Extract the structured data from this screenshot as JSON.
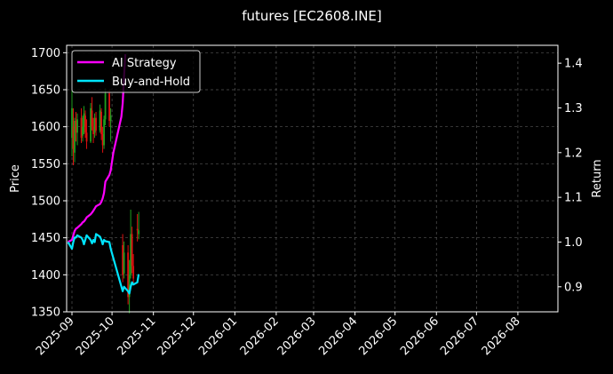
{
  "chart_data": {
    "type": "line",
    "title": "futures [EC2608.INE]",
    "ylabel_left": "Price",
    "ylabel_right": "Return",
    "ylim_left": [
      1350,
      1710
    ],
    "ylim_right": [
      0.844,
      1.44
    ],
    "yticks_left": [
      1350,
      1400,
      1450,
      1500,
      1550,
      1600,
      1650,
      1700
    ],
    "yticks_right": [
      0.9,
      1.0,
      1.1,
      1.2,
      1.3,
      1.4
    ],
    "xlim": [
      "2025-08-28",
      "2026-08-31"
    ],
    "xticks": [
      "2025-09",
      "2025-10",
      "2025-11",
      "2025-12",
      "2026-01",
      "2026-02",
      "2026-03",
      "2026-04",
      "2026-05",
      "2026-06",
      "2026-07",
      "2026-08"
    ],
    "grid": true,
    "legend": {
      "position": "top-left",
      "entries": [
        {
          "label": "AI Strategy",
          "color": "#ff00ff"
        },
        {
          "label": "Buy-and-Hold",
          "color": "#00e5ff"
        }
      ]
    },
    "colors": {
      "up": "#1fa01f",
      "down": "#e01010",
      "grid": "#555555",
      "axis": "#ffffff"
    },
    "candles": [
      {
        "date": "2025-09-01",
        "open": 1585,
        "high": 1655,
        "low": 1560,
        "close": 1625
      },
      {
        "date": "2025-09-02",
        "open": 1600,
        "high": 1625,
        "low": 1548,
        "close": 1570
      },
      {
        "date": "2025-09-03",
        "open": 1565,
        "high": 1612,
        "low": 1552,
        "close": 1608
      },
      {
        "date": "2025-09-04",
        "open": 1608,
        "high": 1620,
        "low": 1580,
        "close": 1592
      },
      {
        "date": "2025-09-05",
        "open": 1592,
        "high": 1618,
        "low": 1575,
        "close": 1610
      },
      {
        "date": "2025-09-08",
        "open": 1612,
        "high": 1625,
        "low": 1578,
        "close": 1585
      },
      {
        "date": "2025-09-09",
        "open": 1588,
        "high": 1615,
        "low": 1580,
        "close": 1600
      },
      {
        "date": "2025-09-10",
        "open": 1600,
        "high": 1628,
        "low": 1590,
        "close": 1618
      },
      {
        "date": "2025-09-11",
        "open": 1615,
        "high": 1622,
        "low": 1585,
        "close": 1592
      },
      {
        "date": "2025-09-12",
        "open": 1592,
        "high": 1610,
        "low": 1570,
        "close": 1580
      },
      {
        "date": "2025-09-15",
        "open": 1580,
        "high": 1632,
        "low": 1578,
        "close": 1625
      },
      {
        "date": "2025-09-16",
        "open": 1622,
        "high": 1640,
        "low": 1595,
        "close": 1600
      },
      {
        "date": "2025-09-17",
        "open": 1600,
        "high": 1612,
        "low": 1578,
        "close": 1590
      },
      {
        "date": "2025-09-18",
        "open": 1592,
        "high": 1618,
        "low": 1585,
        "close": 1612
      },
      {
        "date": "2025-09-19",
        "open": 1612,
        "high": 1620,
        "low": 1588,
        "close": 1595
      },
      {
        "date": "2025-09-22",
        "open": 1595,
        "high": 1630,
        "low": 1592,
        "close": 1622
      },
      {
        "date": "2025-09-23",
        "open": 1620,
        "high": 1625,
        "low": 1582,
        "close": 1590
      },
      {
        "date": "2025-09-24",
        "open": 1590,
        "high": 1600,
        "low": 1565,
        "close": 1575
      },
      {
        "date": "2025-09-25",
        "open": 1575,
        "high": 1615,
        "low": 1570,
        "close": 1610
      },
      {
        "date": "2025-09-26",
        "open": 1610,
        "high": 1652,
        "low": 1602,
        "close": 1645
      },
      {
        "date": "2025-09-29",
        "open": 1645,
        "high": 1650,
        "low": 1600,
        "close": 1608
      },
      {
        "date": "2025-09-30",
        "open": 1608,
        "high": 1625,
        "low": 1580,
        "close": 1615
      },
      {
        "date": "2025-10-09",
        "open": 1440,
        "high": 1455,
        "low": 1390,
        "close": 1400
      },
      {
        "date": "2025-10-10",
        "open": 1402,
        "high": 1445,
        "low": 1395,
        "close": 1430
      },
      {
        "date": "2025-10-13",
        "open": 1430,
        "high": 1440,
        "low": 1360,
        "close": 1370
      },
      {
        "date": "2025-10-14",
        "open": 1370,
        "high": 1420,
        "low": 1348,
        "close": 1400
      },
      {
        "date": "2025-10-15",
        "open": 1400,
        "high": 1488,
        "low": 1395,
        "close": 1455
      },
      {
        "date": "2025-10-16",
        "open": 1455,
        "high": 1465,
        "low": 1402,
        "close": 1412
      },
      {
        "date": "2025-10-17",
        "open": 1412,
        "high": 1428,
        "low": 1388,
        "close": 1395
      },
      {
        "date": "2025-10-20",
        "open": 1462,
        "high": 1482,
        "low": 1445,
        "close": 1460
      },
      {
        "date": "2025-10-21",
        "open": 1455,
        "high": 1485,
        "low": 1448,
        "close": 1460
      }
    ],
    "series": [
      {
        "name": "AI Strategy",
        "axis": "right",
        "color": "#ff00ff",
        "x": [
          "2025-08-29",
          "2025-09-01",
          "2025-09-02",
          "2025-09-03",
          "2025-09-04",
          "2025-09-05",
          "2025-09-08",
          "2025-09-09",
          "2025-09-10",
          "2025-09-11",
          "2025-09-12",
          "2025-09-15",
          "2025-09-16",
          "2025-09-17",
          "2025-09-18",
          "2025-09-19",
          "2025-09-22",
          "2025-09-23",
          "2025-09-24",
          "2025-09-25",
          "2025-09-26",
          "2025-09-29",
          "2025-09-30",
          "2025-10-02",
          "2025-10-05",
          "2025-10-08",
          "2025-10-09",
          "2025-10-10",
          "2025-10-11"
        ],
        "y": [
          1.0,
          1.005,
          1.015,
          1.025,
          1.03,
          1.032,
          1.04,
          1.044,
          1.046,
          1.05,
          1.055,
          1.062,
          1.066,
          1.07,
          1.075,
          1.08,
          1.085,
          1.09,
          1.098,
          1.11,
          1.135,
          1.15,
          1.16,
          1.2,
          1.24,
          1.28,
          1.31,
          1.37,
          1.42
        ]
      },
      {
        "name": "Buy-and-Hold",
        "axis": "right",
        "color": "#00e5ff",
        "x": [
          "2025-08-29",
          "2025-09-01",
          "2025-09-02",
          "2025-09-03",
          "2025-09-04",
          "2025-09-05",
          "2025-09-08",
          "2025-09-09",
          "2025-09-10",
          "2025-09-11",
          "2025-09-12",
          "2025-09-15",
          "2025-09-16",
          "2025-09-17",
          "2025-09-18",
          "2025-09-19",
          "2025-09-22",
          "2025-09-23",
          "2025-09-24",
          "2025-09-25",
          "2025-09-26",
          "2025-09-29",
          "2025-09-30",
          "2025-10-09",
          "2025-10-10",
          "2025-10-13",
          "2025-10-14",
          "2025-10-15",
          "2025-10-16",
          "2025-10-17",
          "2025-10-20",
          "2025-10-21"
        ],
        "y": [
          1.0,
          0.985,
          1.0,
          1.01,
          1.01,
          1.015,
          1.01,
          1.005,
          0.995,
          1.005,
          1.015,
          1.005,
          0.997,
          1.005,
          1.0,
          1.018,
          1.012,
          1.005,
          0.995,
          1.005,
          1.002,
          1.0,
          0.985,
          0.89,
          0.9,
          0.89,
          0.885,
          0.9,
          0.91,
          0.905,
          0.91,
          0.928
        ]
      }
    ]
  }
}
